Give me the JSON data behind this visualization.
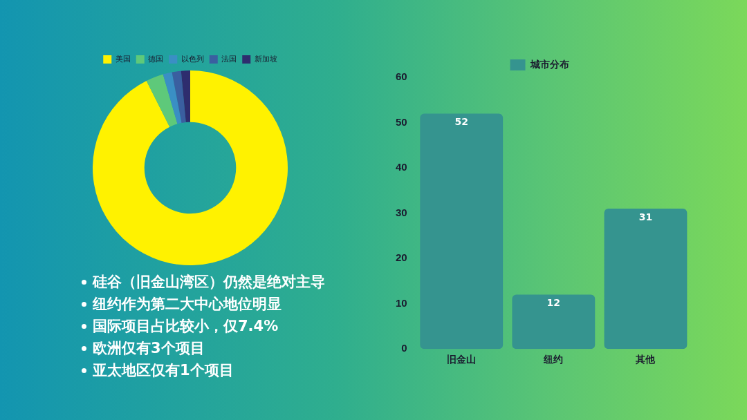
{
  "chart_data": [
    {
      "type": "donut",
      "categories": [
        "美国",
        "德国",
        "以色列",
        "法国",
        "新加坡"
      ],
      "values": [
        92.6,
        2.9,
        1.5,
        1.5,
        1.5
      ],
      "colors": [
        "#fff200",
        "#5ec97a",
        "#3a8fc4",
        "#3a5fa0",
        "#2e2d6e"
      ],
      "legend": "top",
      "annotations": [
        "硅谷（旧金山湾区）仍然是绝对主导",
        "纽约作为第二大中心地位明显",
        "国际项目占比较小，仅7.4%",
        "欧洲仅有3个项目",
        "亚太地区仅有1个项目"
      ]
    },
    {
      "type": "bar",
      "categories": [
        "旧金山",
        "纽约",
        "其他"
      ],
      "series": [
        {
          "name": "城市分布",
          "color": "#35948f",
          "values": [
            52,
            12,
            31
          ]
        }
      ],
      "ylim": [
        0,
        60
      ],
      "yticks": [
        0,
        10,
        20,
        30,
        40,
        50,
        60
      ],
      "grid": false,
      "legend": "top",
      "data_labels": true
    }
  ]
}
